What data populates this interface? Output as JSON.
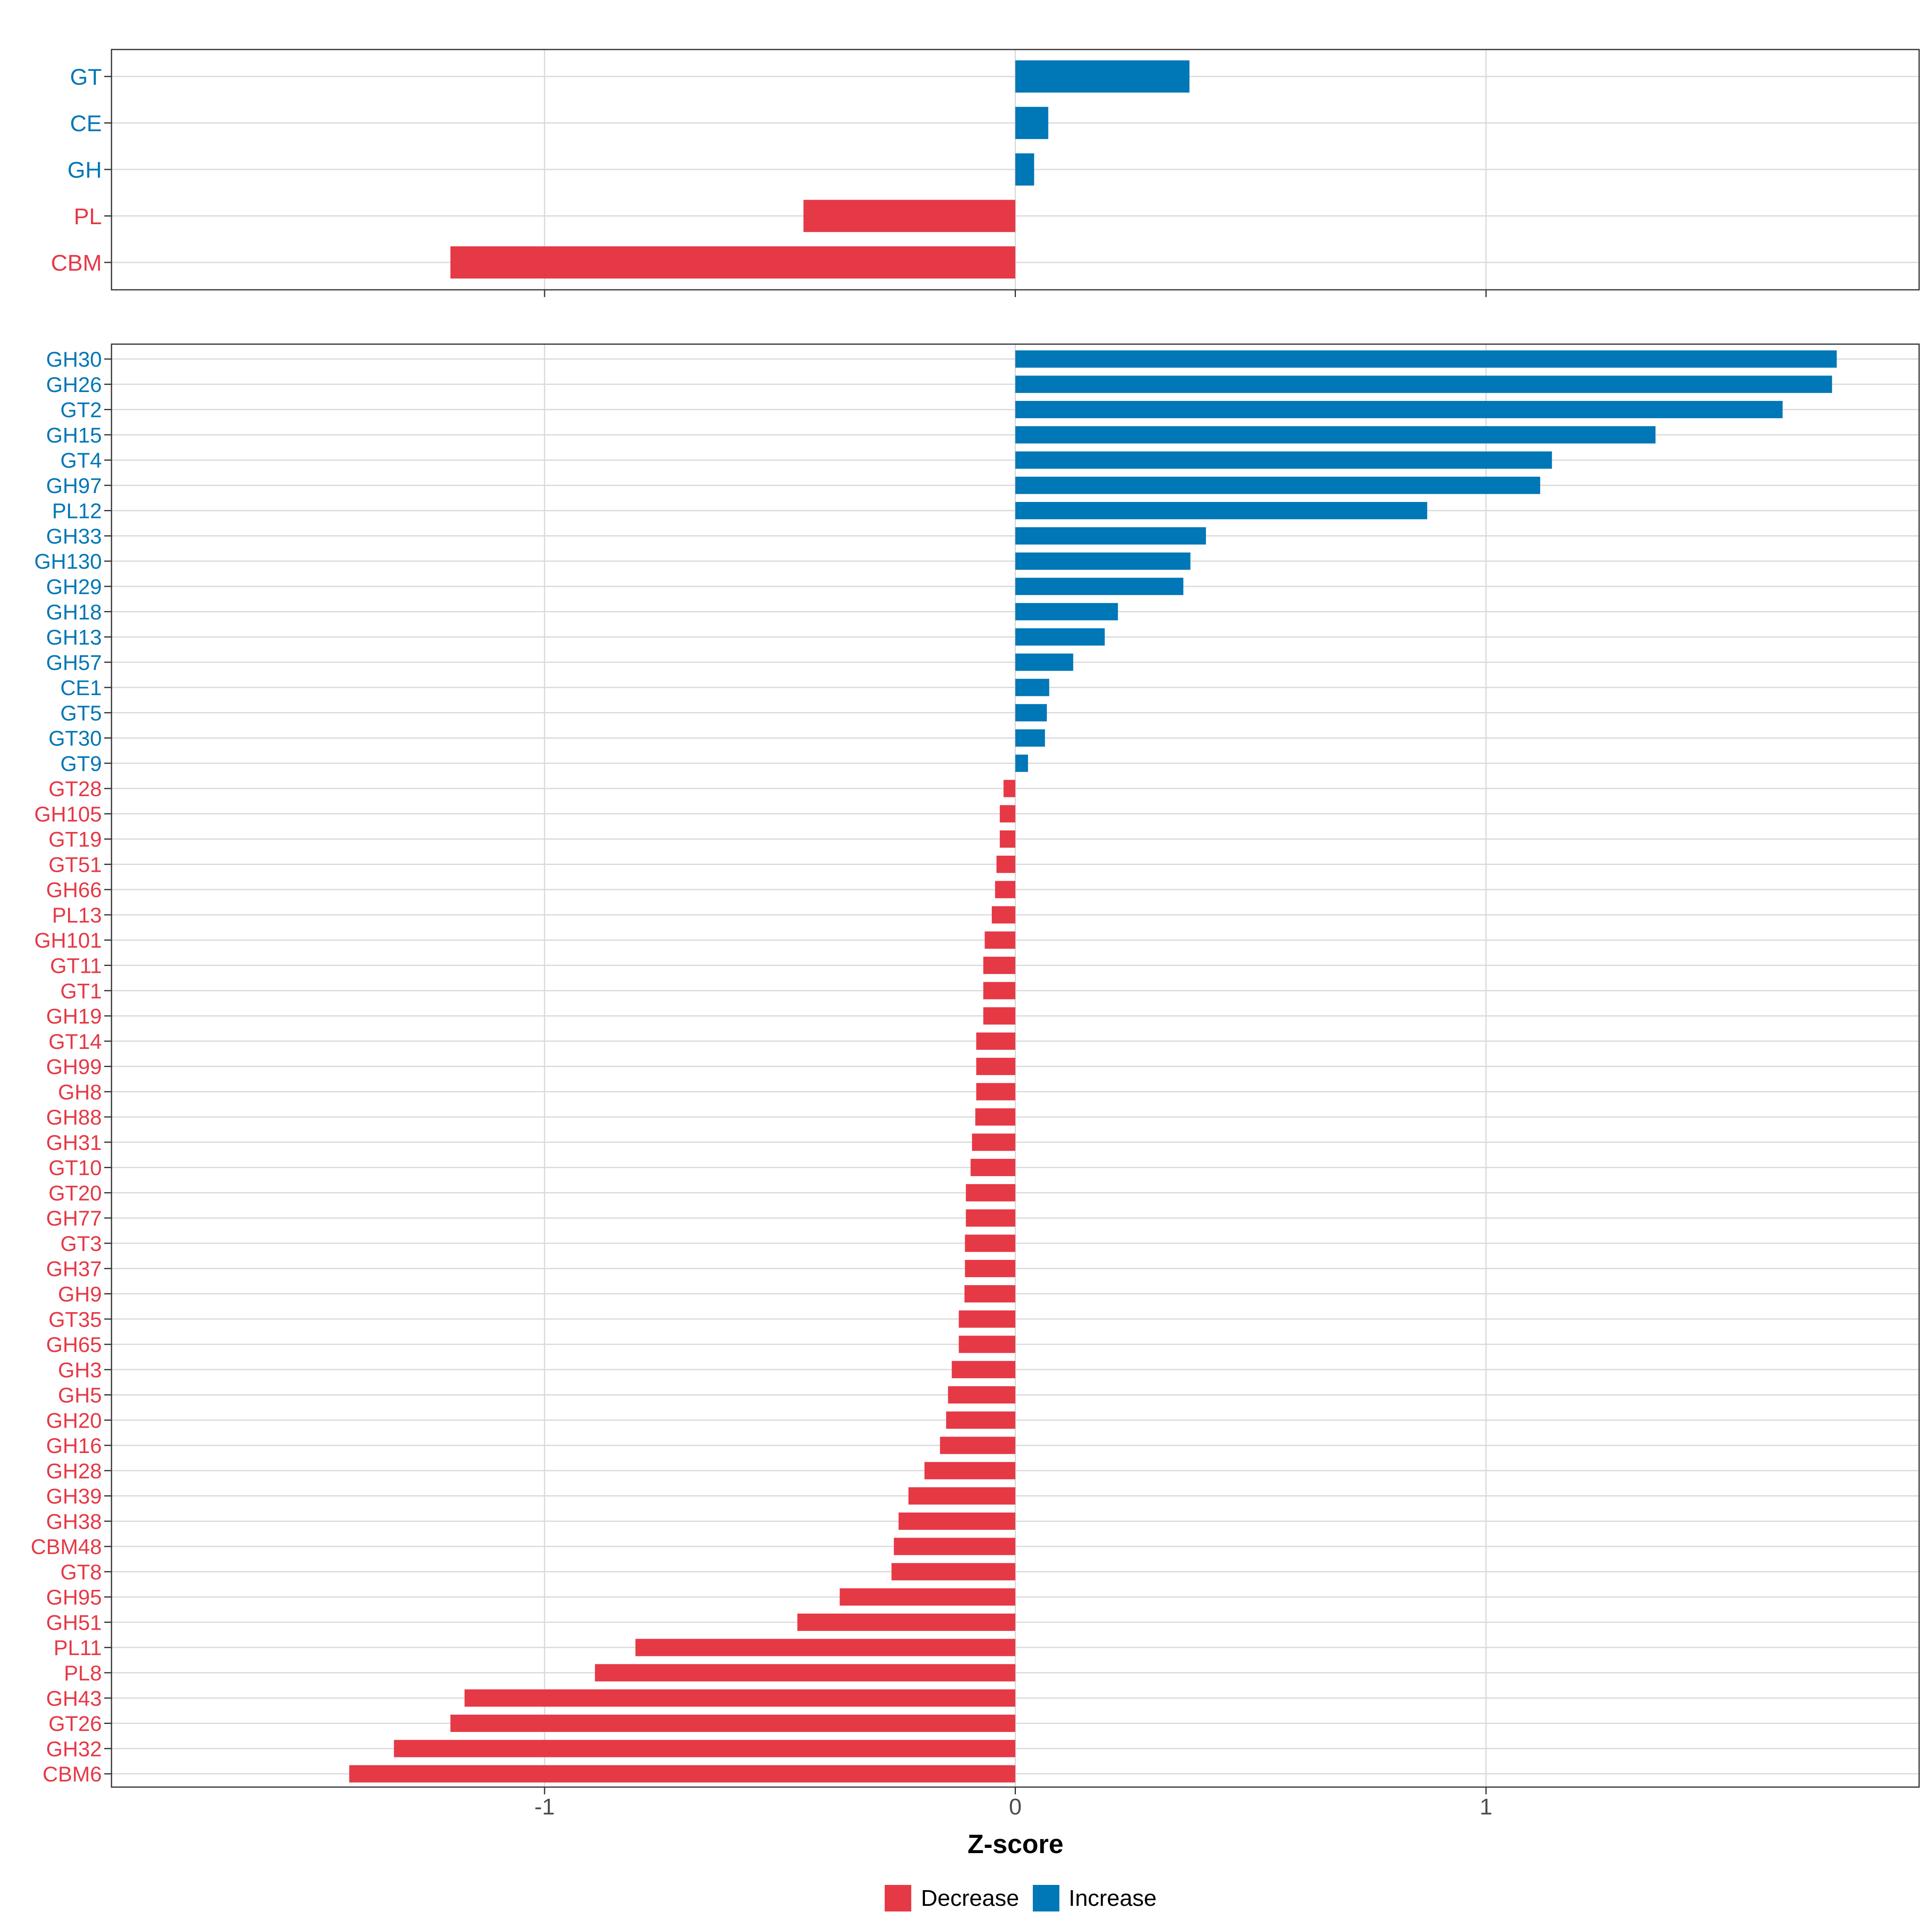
{
  "colors": {
    "decrease": "#e63946",
    "increase": "#0077b6",
    "grid": "#d9d9d9",
    "panel_border": "#333333",
    "axis_text": "#4d4d4d",
    "title_text": "#000000"
  },
  "chart_data": [
    {
      "type": "bar",
      "orientation": "horizontal",
      "panel": "top",
      "categories": [
        "GT",
        "CE",
        "GH",
        "PL",
        "CBM"
      ],
      "values": [
        0.37,
        0.07,
        0.04,
        -0.45,
        -1.2
      ],
      "directions": [
        "Increase",
        "Increase",
        "Increase",
        "Decrease",
        "Decrease"
      ],
      "xlim": [
        -1.92,
        1.92
      ],
      "xticks": [
        -1,
        0,
        1
      ],
      "grid": true
    },
    {
      "type": "bar",
      "orientation": "horizontal",
      "panel": "bottom",
      "categories": [
        "GH30",
        "GH26",
        "GT2",
        "GH15",
        "GT4",
        "GH97",
        "PL12",
        "GH33",
        "GH130",
        "GH29",
        "GH18",
        "GH13",
        "GH57",
        "CE1",
        "GT5",
        "GT30",
        "GT9",
        "GT28",
        "GH105",
        "GT19",
        "GT51",
        "GH66",
        "PL13",
        "GH101",
        "GT11",
        "GT1",
        "GH19",
        "GT14",
        "GH99",
        "GH8",
        "GH88",
        "GH31",
        "GT10",
        "GT20",
        "GH77",
        "GT3",
        "GH37",
        "GH9",
        "GT35",
        "GH65",
        "GH3",
        "GH5",
        "GH20",
        "GH16",
        "GH28",
        "GH39",
        "GH38",
        "CBM48",
        "GT8",
        "GH95",
        "GH51",
        "PL11",
        "PL8",
        "GH43",
        "GT26",
        "GH32",
        "CBM6"
      ],
      "values": [
        1.745,
        1.735,
        1.63,
        1.36,
        1.14,
        1.115,
        0.875,
        0.405,
        0.372,
        0.357,
        0.218,
        0.19,
        0.123,
        0.072,
        0.067,
        0.063,
        0.027,
        -0.025,
        -0.033,
        -0.033,
        -0.04,
        -0.043,
        -0.05,
        -0.065,
        -0.068,
        -0.068,
        -0.068,
        -0.083,
        -0.083,
        -0.083,
        -0.085,
        -0.092,
        -0.095,
        -0.105,
        -0.105,
        -0.107,
        -0.107,
        -0.108,
        -0.12,
        -0.12,
        -0.135,
        -0.143,
        -0.147,
        -0.16,
        -0.193,
        -0.227,
        -0.248,
        -0.258,
        -0.263,
        -0.373,
        -0.463,
        -0.807,
        -0.893,
        -1.17,
        -1.2,
        -1.32,
        -1.415
      ],
      "xlim": [
        -1.92,
        1.92
      ],
      "xticks": [
        -1,
        0,
        1
      ],
      "xticklabels": [
        "-1",
        "0",
        "1"
      ],
      "xlabel": "Z-score",
      "grid": true
    }
  ],
  "legend": {
    "position": "bottom-center",
    "items": [
      {
        "label": "Decrease",
        "color_key": "decrease"
      },
      {
        "label": "Increase",
        "color_key": "increase"
      }
    ]
  }
}
